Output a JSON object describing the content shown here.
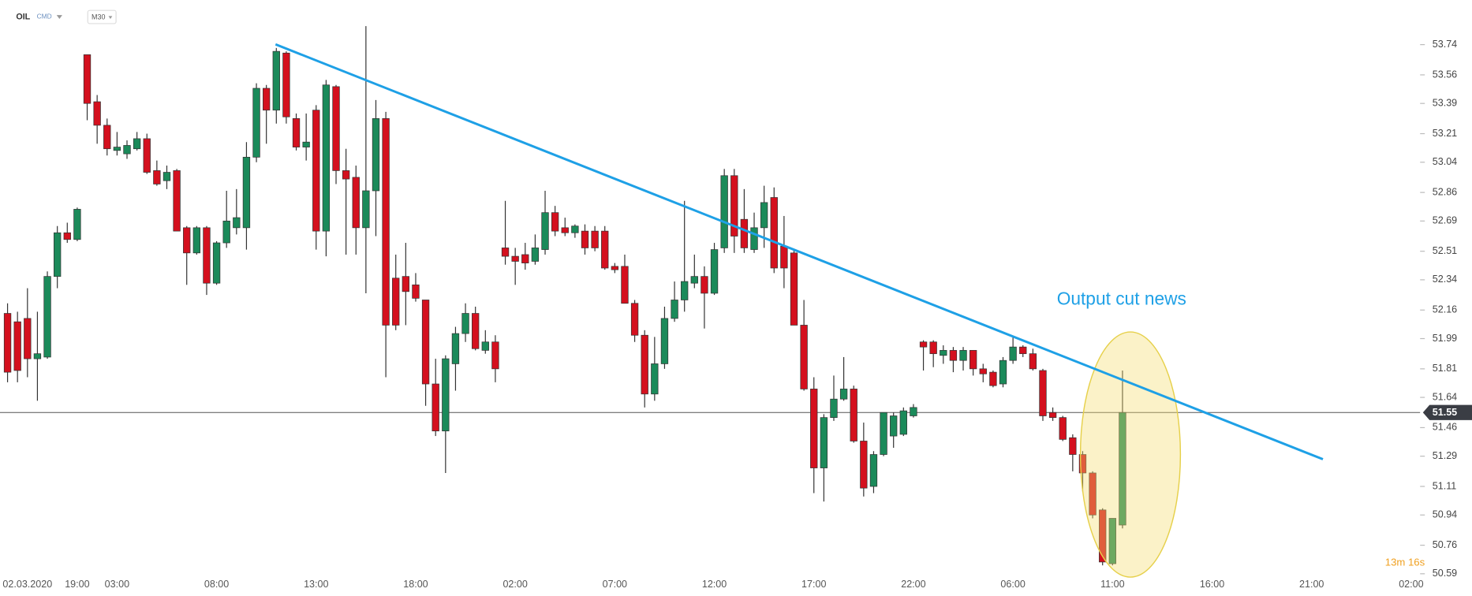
{
  "symbol": "OIL",
  "market": "CMD",
  "interval": "M30",
  "countdown": "13m 16s",
  "chart_data": {
    "type": "candlestick",
    "annotation": "Output cut news",
    "up_color": "#1b8a5a",
    "down_color": "#d4101e",
    "wick_color": "#333333",
    "ylim": [
      50.57,
      54.0
    ],
    "yticks": [
      53.74,
      53.56,
      53.39,
      53.21,
      53.04,
      52.86,
      52.69,
      52.51,
      52.34,
      52.16,
      51.99,
      51.81,
      51.64,
      51.46,
      51.29,
      51.11,
      50.94,
      50.76,
      50.59
    ],
    "last_price": 51.55,
    "categories": [
      null,
      null,
      "02.03.2020",
      null,
      null,
      null,
      null,
      "19:00",
      null,
      null,
      null,
      "03:00",
      null,
      null,
      null,
      null,
      null,
      null,
      null,
      null,
      null,
      "08:00",
      null,
      null,
      null,
      null,
      null,
      null,
      null,
      null,
      null,
      "13:00",
      null,
      null,
      null,
      null,
      null,
      null,
      null,
      null,
      null,
      "18:00",
      null,
      null,
      null,
      null,
      null,
      null,
      null,
      null,
      null,
      "02:00",
      null,
      null,
      null,
      null,
      null,
      null,
      null,
      null,
      null,
      "07:00",
      null,
      null,
      null,
      null,
      null,
      null,
      null,
      null,
      null,
      "12:00",
      null,
      null,
      null,
      null,
      null,
      null,
      null,
      null,
      null,
      "17:00",
      null,
      null,
      null,
      null,
      null,
      null,
      null,
      null,
      null,
      "22:00",
      null,
      null,
      null,
      null,
      null,
      null,
      null,
      null,
      null,
      "06:00",
      null,
      null,
      null,
      null,
      null,
      null,
      null,
      null,
      null,
      "11:00",
      null,
      null,
      null,
      null,
      null,
      null,
      null,
      null,
      null,
      "16:00",
      null,
      null,
      null,
      null,
      null,
      null,
      null,
      null,
      null,
      "21:00",
      null,
      null,
      null,
      null,
      null,
      null,
      null,
      null,
      null,
      "02:00"
    ],
    "open": [
      52.14,
      52.09,
      52.11,
      51.87,
      51.88,
      52.36,
      52.62,
      52.58,
      53.68,
      53.4,
      53.26,
      53.11,
      53.09,
      53.12,
      53.18,
      52.99,
      52.93,
      52.99,
      52.65,
      52.5,
      52.65,
      52.32,
      52.56,
      52.65,
      52.65,
      53.07,
      53.48,
      53.35,
      53.69,
      53.3,
      53.13,
      53.35,
      52.63,
      53.49,
      52.99,
      52.95,
      52.65,
      52.87,
      53.3,
      52.35,
      52.36,
      52.31,
      52.22,
      51.72,
      51.44,
      51.84,
      52.02,
      52.14,
      51.92,
      51.97,
      52.53,
      52.48,
      52.49,
      52.45,
      52.52,
      52.74,
      52.65,
      52.62,
      52.63,
      52.63,
      52.63,
      52.42,
      52.42,
      52.2,
      52.01,
      51.66,
      51.84,
      52.11,
      52.22,
      52.32,
      52.36,
      52.26,
      52.53,
      52.96,
      52.7,
      52.52,
      52.65,
      52.83,
      52.54,
      52.5,
      52.07,
      51.69,
      51.22,
      51.52,
      51.63,
      51.69,
      51.38,
      51.11,
      51.3,
      51.41,
      51.42,
      51.53,
      51.97,
      51.97,
      51.89,
      51.92,
      51.86,
      51.92,
      51.81,
      51.79,
      51.72,
      51.86,
      51.94,
      51.9,
      51.8,
      51.55,
      51.52,
      51.4,
      51.3,
      51.19,
      50.97,
      50.65,
      50.88,
      null,
      null,
      null,
      null,
      null,
      null,
      null,
      null,
      null,
      null,
      null,
      null,
      null,
      null,
      null,
      null,
      null,
      null,
      null,
      null,
      null,
      null,
      null,
      null,
      null,
      null,
      null,
      null,
      null
    ],
    "high": [
      52.2,
      52.15,
      52.29,
      52.15,
      52.39,
      52.66,
      52.68,
      52.77,
      53.68,
      53.44,
      53.3,
      53.22,
      53.17,
      53.22,
      53.21,
      53.05,
      53.02,
      53.0,
      52.66,
      52.66,
      52.66,
      52.57,
      52.87,
      52.88,
      53.16,
      53.51,
      53.5,
      53.72,
      53.7,
      53.33,
      53.33,
      53.38,
      53.53,
      53.5,
      53.12,
      53.02,
      53.85,
      53.41,
      53.34,
      52.49,
      52.56,
      52.38,
      52.22,
      51.87,
      51.89,
      52.06,
      52.2,
      52.18,
      52.04,
      52.01,
      52.81,
      52.53,
      52.56,
      52.61,
      52.87,
      52.78,
      52.71,
      52.67,
      52.67,
      52.66,
      52.66,
      52.44,
      52.49,
      52.22,
      52.04,
      52.0,
      52.18,
      52.33,
      52.81,
      52.49,
      52.42,
      52.56,
      53.0,
      53.0,
      52.88,
      52.74,
      52.9,
      52.89,
      52.72,
      52.52,
      52.22,
      51.76,
      51.54,
      51.77,
      51.88,
      51.71,
      51.49,
      51.32,
      51.55,
      51.55,
      51.58,
      51.6,
      51.98,
      51.98,
      51.95,
      51.94,
      51.94,
      51.92,
      51.84,
      51.8,
      51.88,
      52.0,
      51.95,
      51.93,
      51.81,
      51.58,
      51.53,
      51.42,
      51.32,
      51.2,
      50.98,
      50.92,
      51.8,
      null,
      null,
      null,
      null,
      null,
      null,
      null,
      null,
      null,
      null,
      null,
      null,
      null,
      null,
      null,
      null,
      null,
      null,
      null,
      null,
      null,
      null,
      null,
      null,
      null,
      null,
      null,
      null,
      null
    ],
    "low": [
      51.73,
      51.73,
      51.76,
      51.62,
      51.87,
      52.29,
      52.56,
      52.57,
      53.29,
      53.15,
      53.08,
      53.08,
      53.06,
      53.11,
      52.97,
      52.9,
      52.88,
      52.63,
      52.31,
      52.49,
      52.25,
      52.31,
      52.53,
      52.61,
      52.52,
      53.04,
      53.15,
      53.27,
      53.27,
      53.11,
      53.05,
      52.52,
      52.48,
      52.91,
      52.49,
      52.49,
      52.26,
      52.6,
      51.76,
      52.04,
      52.07,
      52.21,
      51.59,
      51.41,
      51.19,
      51.68,
      51.97,
      51.92,
      51.9,
      51.73,
      52.43,
      52.31,
      52.4,
      52.43,
      52.49,
      52.6,
      52.6,
      52.59,
      52.49,
      52.51,
      52.4,
      52.38,
      52.2,
      51.97,
      51.58,
      51.62,
      51.81,
      52.09,
      52.15,
      52.29,
      52.05,
      52.25,
      52.5,
      52.5,
      52.5,
      52.5,
      52.53,
      52.38,
      52.29,
      52.07,
      51.68,
      51.07,
      51.02,
      51.5,
      51.62,
      51.37,
      51.05,
      51.07,
      51.29,
      51.34,
      51.41,
      51.52,
      51.8,
      51.82,
      51.84,
      51.79,
      51.8,
      51.77,
      51.73,
      51.7,
      51.7,
      51.84,
      51.88,
      51.8,
      51.5,
      51.5,
      51.38,
      51.2,
      51.08,
      50.92,
      50.64,
      50.64,
      50.86,
      null,
      null,
      null,
      null,
      null,
      null,
      null,
      null,
      null,
      null,
      null,
      null,
      null,
      null,
      null,
      null,
      null,
      null,
      null,
      null,
      null,
      null,
      null,
      null,
      null,
      null,
      null,
      null,
      null
    ],
    "close": [
      51.79,
      51.8,
      51.87,
      51.9,
      52.36,
      52.62,
      52.58,
      52.76,
      53.39,
      53.26,
      53.12,
      53.13,
      53.14,
      53.18,
      52.98,
      52.91,
      52.98,
      52.63,
      52.5,
      52.65,
      52.32,
      52.56,
      52.69,
      52.71,
      53.07,
      53.48,
      53.35,
      53.7,
      53.31,
      53.13,
      53.16,
      52.63,
      53.5,
      52.99,
      52.94,
      52.65,
      52.87,
      53.3,
      52.07,
      52.07,
      52.27,
      52.23,
      51.72,
      51.44,
      51.87,
      52.02,
      52.14,
      51.93,
      51.97,
      51.81,
      52.48,
      52.45,
      52.44,
      52.53,
      52.74,
      52.63,
      52.62,
      52.66,
      52.53,
      52.53,
      52.41,
      52.4,
      52.2,
      52.01,
      51.66,
      51.84,
      52.11,
      52.22,
      52.33,
      52.36,
      52.26,
      52.52,
      52.96,
      52.6,
      52.53,
      52.65,
      52.8,
      52.41,
      52.41,
      52.07,
      51.69,
      51.22,
      51.52,
      51.63,
      51.69,
      51.38,
      51.1,
      51.3,
      51.55,
      51.53,
      51.56,
      51.58,
      51.94,
      51.9,
      51.92,
      51.86,
      51.92,
      51.81,
      51.78,
      51.71,
      51.86,
      51.94,
      51.9,
      51.81,
      51.53,
      51.52,
      51.39,
      51.3,
      51.19,
      50.94,
      50.66,
      50.92,
      51.55,
      null,
      null,
      null,
      null,
      null,
      null,
      null,
      null,
      null,
      null,
      null,
      null,
      null,
      null,
      null,
      null,
      null,
      null,
      null,
      null,
      null,
      null,
      null,
      null,
      null,
      null,
      null,
      null,
      null
    ]
  }
}
